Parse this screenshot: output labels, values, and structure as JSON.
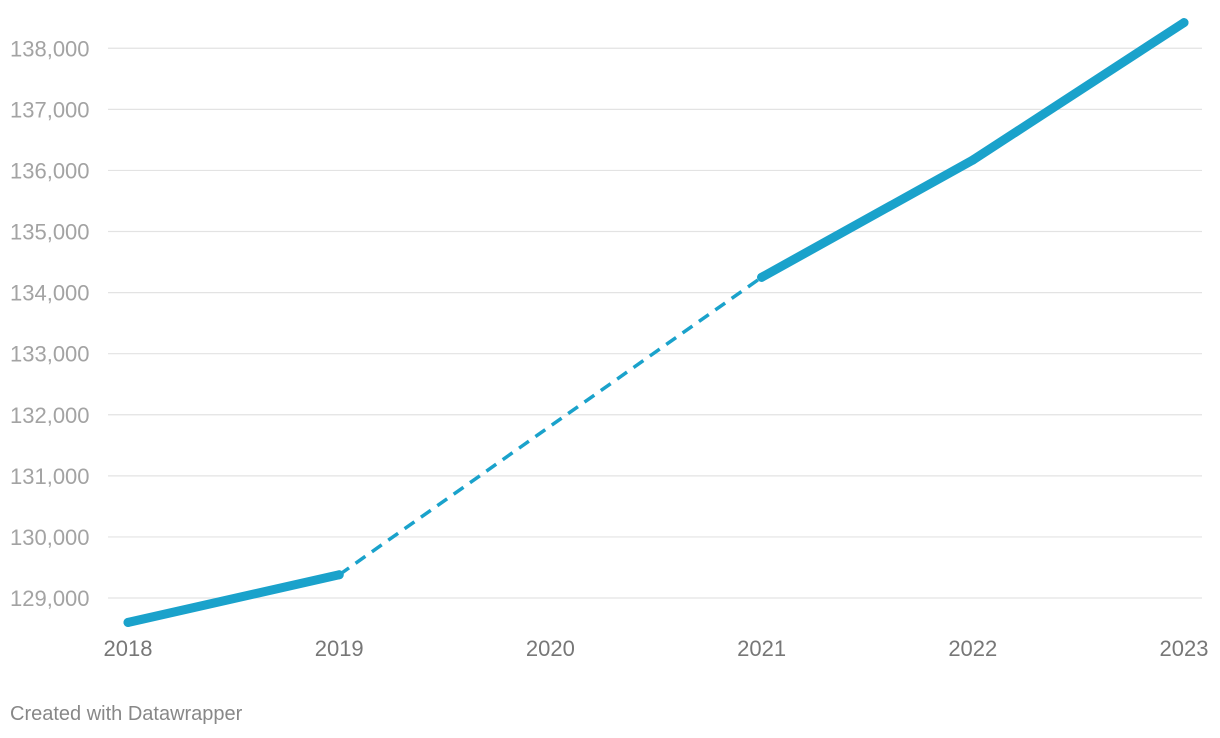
{
  "chart_data": {
    "type": "line",
    "x": [
      "2018",
      "2019",
      "2020",
      "2021",
      "2022",
      "2023"
    ],
    "series": [
      {
        "values": [
          128600,
          129380,
          null,
          134250,
          136170,
          138420
        ],
        "color": "#1aa2cb",
        "interpolated_gap": {
          "from": "2019",
          "to": "2021",
          "style": "dashed"
        }
      }
    ],
    "yticks": [
      129000,
      130000,
      131000,
      132000,
      133000,
      134000,
      135000,
      136000,
      137000,
      138000
    ],
    "ytick_labels": [
      "129,000",
      "130,000",
      "131,000",
      "132,000",
      "133,000",
      "134,000",
      "135,000",
      "136,000",
      "137,000",
      "138,000"
    ],
    "ylim": [
      128600,
      138450
    ],
    "grid": true,
    "legend": "none"
  },
  "footer": {
    "credit": "Created with Datawrapper"
  }
}
